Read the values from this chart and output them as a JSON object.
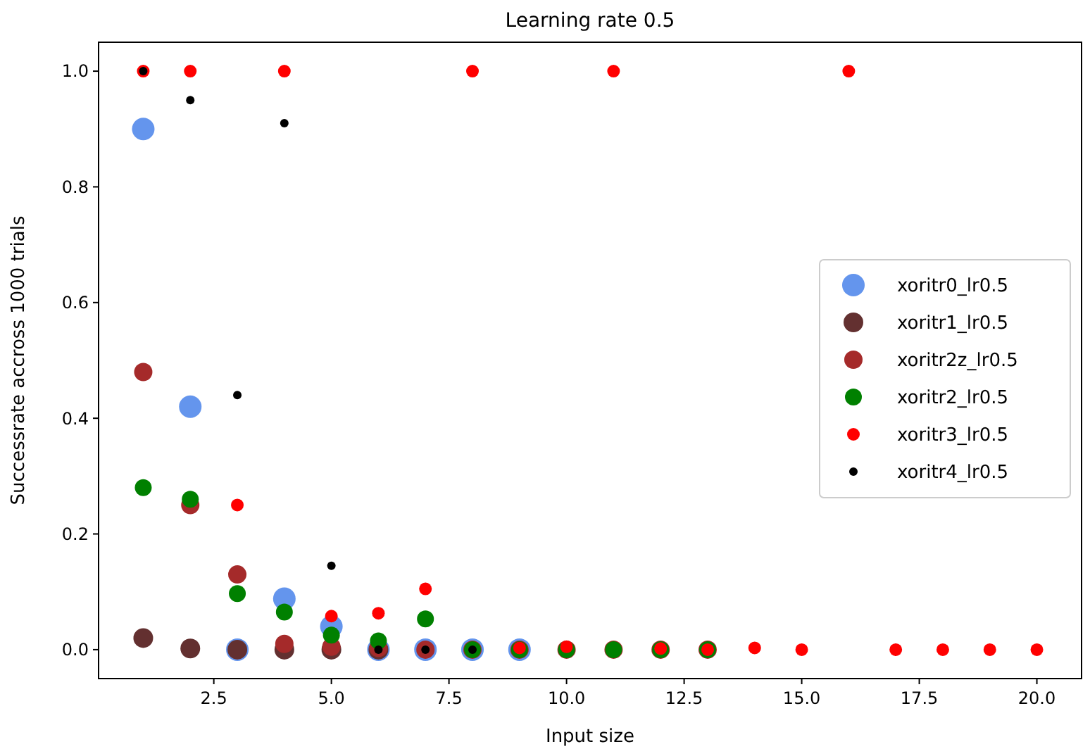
{
  "chart_data": {
    "type": "scatter",
    "title": "Learning rate 0.5",
    "xlabel": "Input size",
    "ylabel": "Successrate accross 1000 trials",
    "xlim": [
      0.05,
      20.95
    ],
    "ylim": [
      -0.05,
      1.05
    ],
    "xticks": [
      {
        "value": 2.5,
        "label": "2.5"
      },
      {
        "value": 5,
        "label": "5.0"
      },
      {
        "value": 7.5,
        "label": "7.5"
      },
      {
        "value": 10,
        "label": "10.0"
      },
      {
        "value": 12.5,
        "label": "12.5"
      },
      {
        "value": 15,
        "label": "15.0"
      },
      {
        "value": 17.5,
        "label": "17.5"
      },
      {
        "value": 20,
        "label": "20.0"
      }
    ],
    "yticks": [
      {
        "value": 0,
        "label": "0.0"
      },
      {
        "value": 0.2,
        "label": "0.2"
      },
      {
        "value": 0.4,
        "label": "0.4"
      },
      {
        "value": 0.6,
        "label": "0.6"
      },
      {
        "value": 0.8,
        "label": "0.8"
      },
      {
        "value": 1,
        "label": "1.0"
      }
    ],
    "grid": false,
    "legend": "right",
    "marker": "circle",
    "series": [
      {
        "name": "xoritr0_lr0.5",
        "color": "#6495ed",
        "x": [
          1,
          2,
          3,
          4,
          5,
          6,
          7,
          8,
          9
        ],
        "values": [
          0.9,
          0.42,
          0,
          0.088,
          0.04,
          0,
          0,
          0,
          0
        ]
      },
      {
        "name": "xoritr1_lr0.5",
        "color": "#633030",
        "x": [
          1,
          2,
          3,
          4,
          5,
          6
        ],
        "values": [
          0.02,
          0.002,
          0,
          0,
          0,
          0
        ]
      },
      {
        "name": "xoritr2z_lr0.5",
        "color": "#a52a2a",
        "x": [
          1,
          2,
          3,
          4,
          5,
          6,
          7,
          8,
          9,
          10,
          11,
          12,
          13
        ],
        "values": [
          0.48,
          0.25,
          0.13,
          0.01,
          0.005,
          0.003,
          0,
          0,
          0,
          0,
          0,
          0,
          0
        ]
      },
      {
        "name": "xoritr2_lr0.5",
        "color": "#008000",
        "x": [
          1,
          2,
          3,
          4,
          5,
          6,
          7,
          8,
          9,
          10,
          11,
          12,
          13
        ],
        "values": [
          0.28,
          0.26,
          0.097,
          0.065,
          0.025,
          0.015,
          0.053,
          0,
          0,
          0,
          0,
          0,
          0
        ]
      },
      {
        "name": "xoritr3_lr0.5",
        "color": "#ff0000",
        "x": [
          1,
          2,
          3,
          4,
          5,
          6,
          7,
          8,
          9,
          10,
          11,
          12,
          13,
          14,
          15,
          16,
          17,
          18,
          19,
          20
        ],
        "values": [
          1,
          1,
          0.25,
          1,
          0.058,
          0.063,
          0.105,
          1,
          0.003,
          0.005,
          1,
          0.002,
          0,
          0.003,
          0,
          1,
          0,
          0,
          0,
          0
        ]
      },
      {
        "name": "xoritr4_lr0.5",
        "color": "#000000",
        "x": [
          1,
          2,
          3,
          4,
          5,
          6,
          7,
          8
        ],
        "values": [
          1,
          0.95,
          0.44,
          0.91,
          0.145,
          0,
          0,
          0
        ]
      }
    ]
  }
}
